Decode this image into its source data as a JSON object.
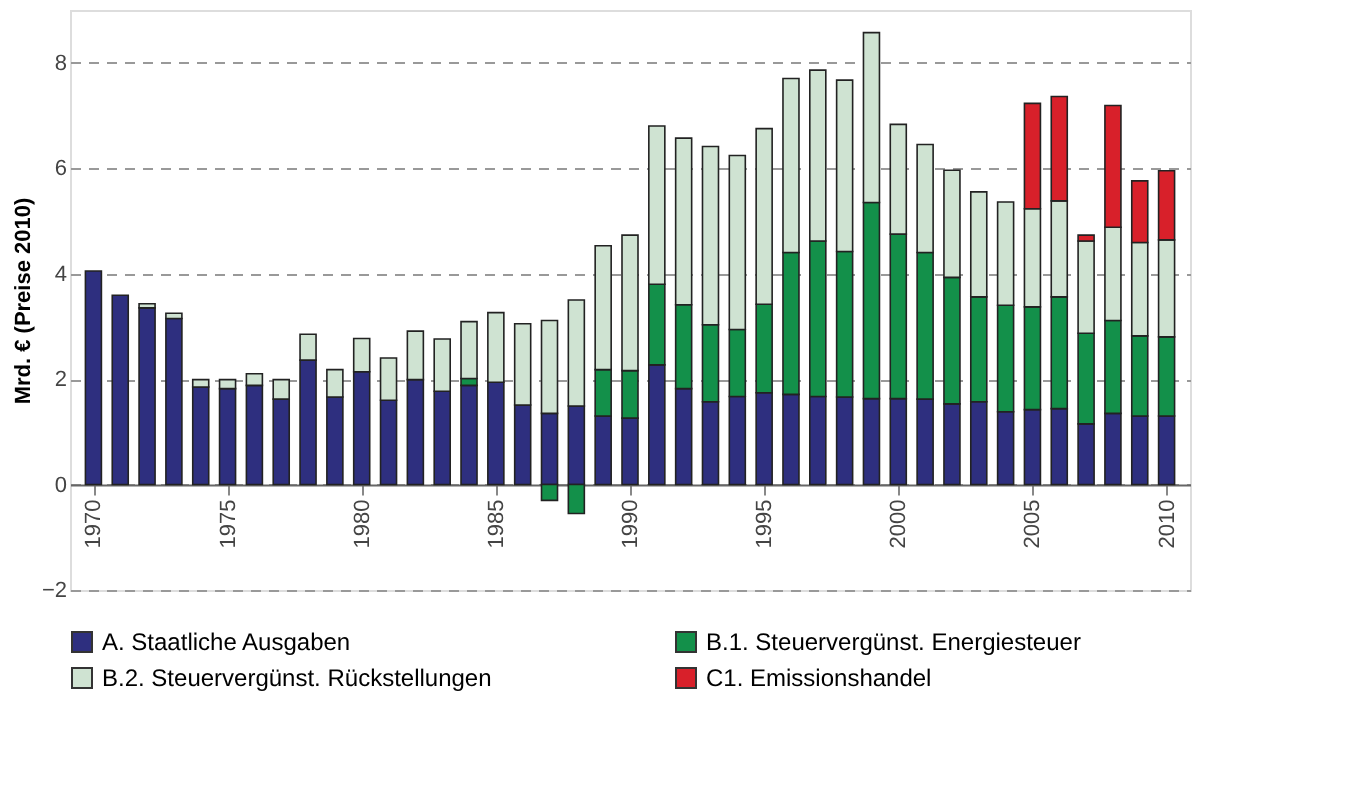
{
  "chart_data": {
    "type": "bar",
    "stacked": true,
    "ylabel": "Mrd. € (Preise 2010)",
    "x": [
      1970,
      1971,
      1972,
      1973,
      1974,
      1975,
      1976,
      1977,
      1978,
      1979,
      1980,
      1981,
      1982,
      1983,
      1984,
      1985,
      1986,
      1987,
      1988,
      1989,
      1990,
      1991,
      1992,
      1993,
      1994,
      1995,
      1996,
      1997,
      1998,
      1999,
      2000,
      2001,
      2002,
      2003,
      2004,
      2005,
      2006,
      2007,
      2008,
      2009,
      2010
    ],
    "xlim": [
      1969.5,
      2010.5
    ],
    "xticks": [
      1970,
      1975,
      1980,
      1985,
      1990,
      1995,
      2000,
      2005,
      2010
    ],
    "ylim": [
      -2,
      9
    ],
    "yticks": [
      -2,
      0,
      2,
      4,
      6,
      8
    ],
    "grid": "y",
    "legend": "bottom",
    "series": [
      {
        "name": "A. Staatliche Ausgaben",
        "color": "#2e2f7f",
        "values": [
          4.05,
          3.59,
          3.35,
          3.15,
          1.85,
          1.82,
          1.88,
          1.62,
          2.36,
          1.66,
          2.14,
          1.6,
          1.99,
          1.77,
          1.88,
          1.94,
          1.51,
          1.35,
          1.49,
          1.3,
          1.26,
          2.27,
          1.82,
          1.57,
          1.67,
          1.74,
          1.71,
          1.67,
          1.66,
          1.63,
          1.63,
          1.62,
          1.53,
          1.57,
          1.38,
          1.42,
          1.44,
          1.15,
          1.35,
          1.3,
          1.3
        ]
      },
      {
        "name": "B.1. Steuervergünst. Energiesteuer",
        "color": "#13904a",
        "values": [
          null,
          null,
          null,
          null,
          null,
          null,
          null,
          null,
          null,
          null,
          null,
          null,
          null,
          null,
          0.13,
          null,
          null,
          -0.3,
          -0.55,
          0.88,
          0.9,
          1.53,
          1.59,
          1.46,
          1.27,
          1.68,
          2.69,
          2.95,
          2.76,
          3.72,
          3.12,
          2.78,
          2.4,
          1.99,
          2.02,
          1.95,
          2.12,
          1.72,
          1.76,
          1.52,
          1.5
        ]
      },
      {
        "name": "B.2. Steuervergünst. Rückstellungen",
        "color": "#cfe3d2",
        "values": [
          null,
          null,
          0.08,
          0.1,
          0.14,
          0.17,
          0.22,
          0.37,
          0.49,
          0.52,
          0.63,
          0.8,
          0.92,
          0.99,
          1.08,
          1.32,
          1.54,
          1.76,
          2.01,
          2.35,
          2.57,
          3.0,
          3.16,
          3.38,
          3.3,
          3.33,
          3.3,
          3.24,
          3.25,
          3.22,
          2.08,
          2.05,
          2.03,
          1.99,
          1.96,
          1.86,
          1.82,
          1.75,
          1.77,
          1.77,
          1.84
        ]
      },
      {
        "name": "C1. Emissionshandel",
        "color": "#d8202a",
        "values": [
          null,
          null,
          null,
          null,
          null,
          null,
          null,
          null,
          null,
          null,
          null,
          null,
          null,
          null,
          null,
          null,
          null,
          null,
          null,
          null,
          null,
          null,
          null,
          null,
          null,
          null,
          null,
          null,
          null,
          null,
          null,
          null,
          null,
          null,
          null,
          2.0,
          1.98,
          0.11,
          2.31,
          1.17,
          1.31
        ]
      }
    ]
  }
}
